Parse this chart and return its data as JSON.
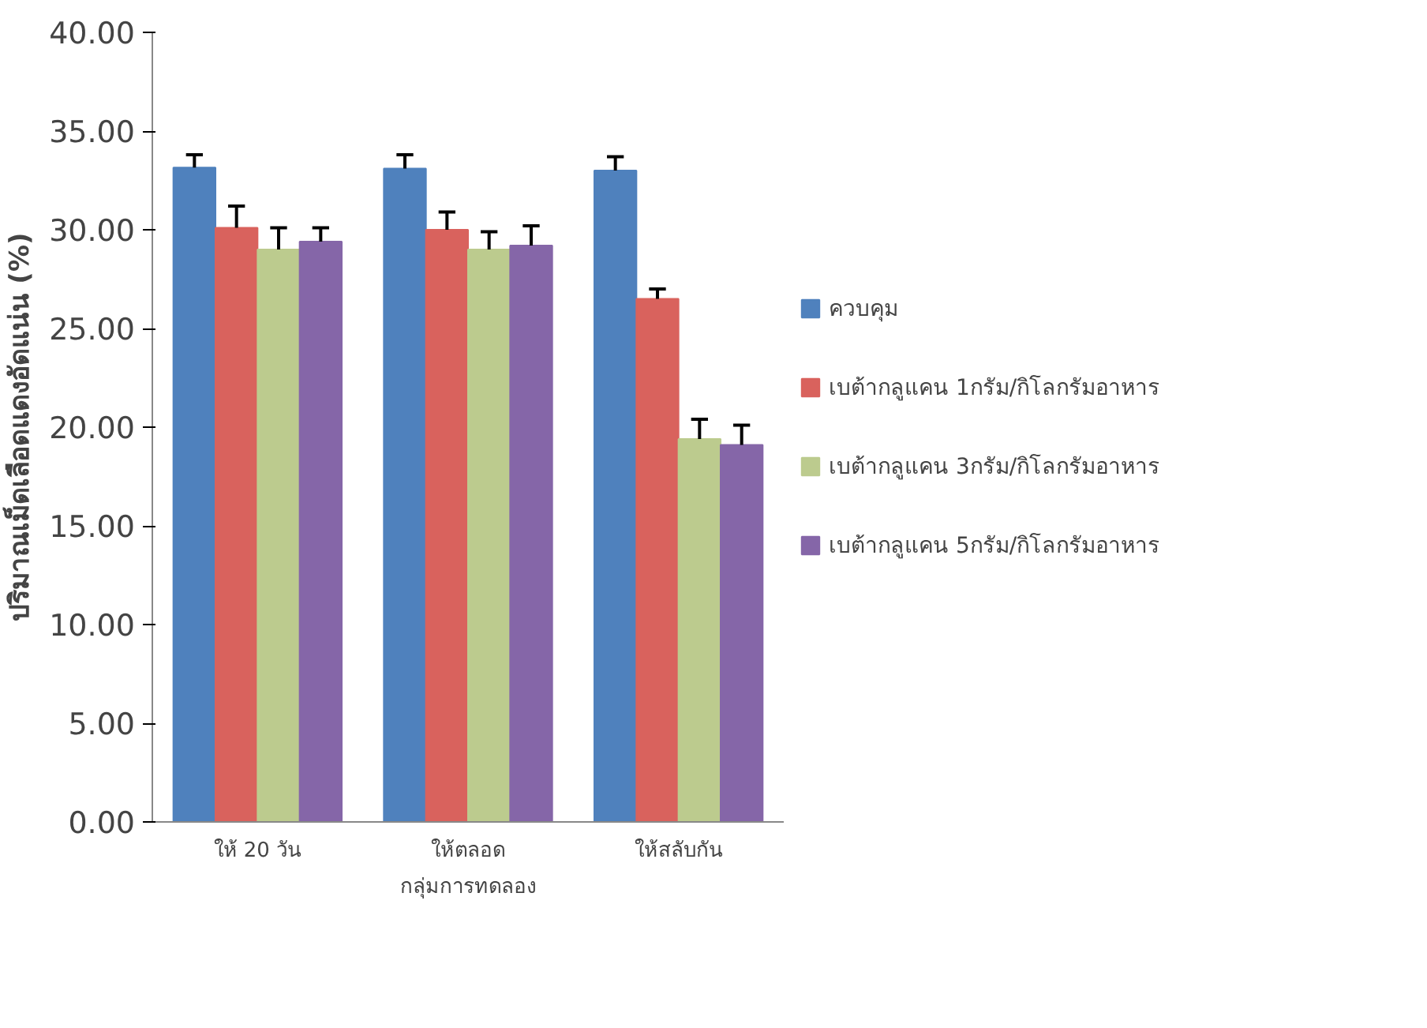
{
  "chart_data": {
    "type": "bar",
    "xlabel": "กลุ่มการทดลอง",
    "ylabel": "ปริมาณเม็ดเลือดแดงอัดแน่น (%)",
    "categories": [
      "ให้ 20 วัน",
      "ให้ตลอด",
      "ให้สลับกัน"
    ],
    "series": [
      {
        "name": "ควบคุม",
        "color": "#4f81bd",
        "values": [
          33.15,
          33.1,
          33.0
        ],
        "errors": [
          [
            33.15,
            33.8
          ],
          [
            33.1,
            33.8
          ],
          [
            33.0,
            33.7
          ]
        ]
      },
      {
        "name": "เบต้ากลูแคน 1กรัม/กิโลกรัมอาหาร",
        "color": "#d9625d",
        "values": [
          30.1,
          30.0,
          26.5
        ],
        "errors": [
          [
            30.1,
            31.2
          ],
          [
            30.0,
            30.9
          ],
          [
            26.5,
            27.0
          ]
        ]
      },
      {
        "name": "เบต้ากลูแคน 3กรัม/กิโลกรัมอาหาร",
        "color": "#bccb8e",
        "values": [
          29.0,
          29.0,
          19.4
        ],
        "errors": [
          [
            29.0,
            30.1
          ],
          [
            29.0,
            29.9
          ],
          [
            19.4,
            20.4
          ]
        ]
      },
      {
        "name": "เบต้ากลูแคน 5กรัม/กิโลกรัมอาหาร",
        "color": "#8566a8",
        "values": [
          29.4,
          29.2,
          19.1
        ],
        "errors": [
          [
            29.4,
            30.1
          ],
          [
            29.2,
            30.2
          ],
          [
            19.1,
            20.1
          ]
        ]
      }
    ],
    "ylim": [
      0,
      40
    ],
    "yticks": [
      {
        "value": 0,
        "label": "0.00"
      },
      {
        "value": 5,
        "label": "5.00"
      },
      {
        "value": 10,
        "label": "10.00"
      },
      {
        "value": 15,
        "label": "15.00"
      },
      {
        "value": 20,
        "label": "20.00"
      },
      {
        "value": 25,
        "label": "25.00"
      },
      {
        "value": 30,
        "label": "30.00"
      },
      {
        "value": 35,
        "label": "35.00"
      },
      {
        "value": 40,
        "label": "40.00"
      }
    ],
    "grid": false,
    "legend": "right"
  }
}
